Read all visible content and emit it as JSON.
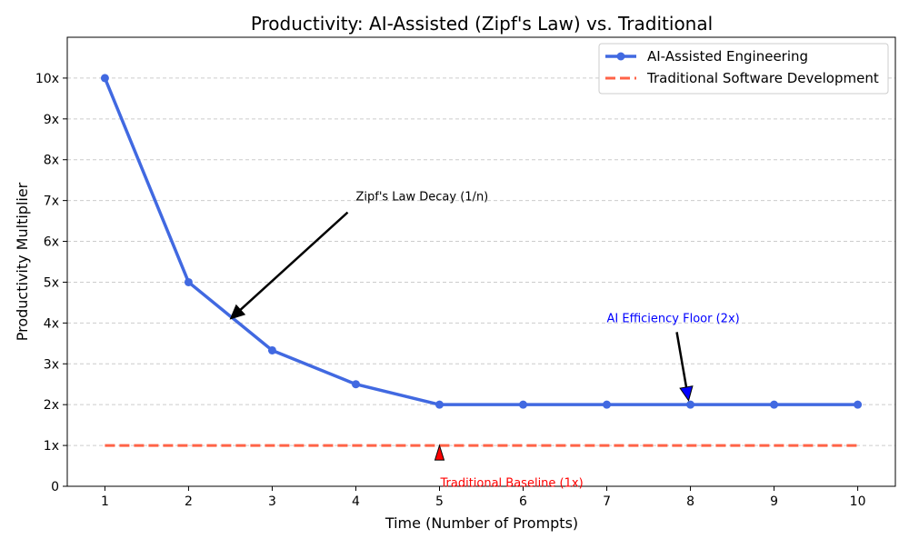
{
  "chart_data": {
    "type": "line",
    "title": "Productivity: AI-Assisted (Zipf's Law) vs. Traditional",
    "xlabel": "Time (Number of Prompts)",
    "ylabel": "Productivity Multiplier",
    "xlim": [
      0.55,
      10.45
    ],
    "ylim": [
      0,
      11
    ],
    "x_ticks": [
      1,
      2,
      3,
      4,
      5,
      6,
      7,
      8,
      9,
      10
    ],
    "y_ticks": [
      0,
      1,
      2,
      3,
      4,
      5,
      6,
      7,
      8,
      9,
      10
    ],
    "y_tick_labels": [
      "0",
      "1x",
      "2x",
      "3x",
      "4x",
      "5x",
      "6x",
      "7x",
      "8x",
      "9x",
      "10x"
    ],
    "grid": "y-dashed",
    "legend_position": "top-right",
    "series": [
      {
        "name": "AI-Assisted Engineering",
        "color": "#4169E1",
        "style": "solid-markers",
        "x": [
          1,
          2,
          3,
          4,
          5,
          6,
          7,
          8,
          9,
          10
        ],
        "values": [
          10,
          5,
          3.33,
          2.5,
          2,
          2,
          2,
          2,
          2,
          2
        ]
      },
      {
        "name": "Traditional Software Development",
        "color": "#FF6347",
        "style": "dashed",
        "x": [
          1,
          2,
          3,
          4,
          5,
          6,
          7,
          8,
          9,
          10
        ],
        "values": [
          1,
          1,
          1,
          1,
          1,
          1,
          1,
          1,
          1,
          1
        ]
      }
    ],
    "annotations": [
      {
        "text": "Zipf's Law Decay (1/n)",
        "point": [
          2.5,
          4.1
        ],
        "text_at": [
          4.0,
          7.0
        ],
        "color": "#000000"
      },
      {
        "text": "AI Efficiency Floor (2x)",
        "point": [
          8,
          2.1
        ],
        "text_at": [
          7.0,
          4.0
        ],
        "color": "#0000FF"
      },
      {
        "text": "Traditional Baseline (1x)",
        "point": [
          5,
          1.0
        ],
        "text_at": [
          5.0,
          0.3
        ],
        "color": "#FF0000"
      }
    ]
  }
}
